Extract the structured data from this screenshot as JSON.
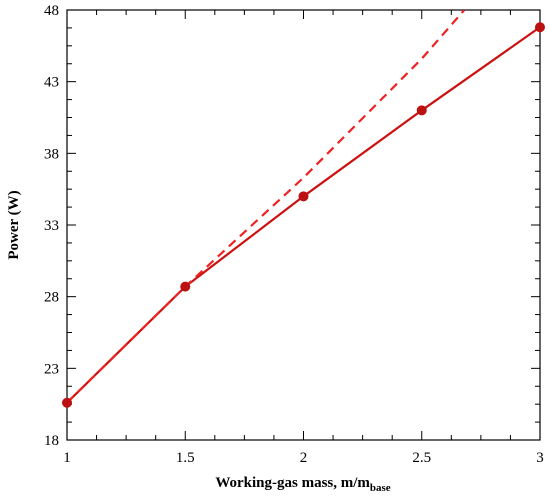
{
  "chart_data": {
    "type": "line",
    "title": "",
    "xlabel": "Working-gas mass, m/m",
    "xlabel_sub": "base",
    "ylabel": "Power (W)",
    "xlim": [
      1,
      3
    ],
    "ylim": [
      18,
      48
    ],
    "xticks": [
      1,
      1.5,
      2,
      2.5,
      3
    ],
    "xtick_labels": [
      "1",
      "1.5",
      "2",
      "2.5",
      "3"
    ],
    "yticks": [
      18,
      23,
      28,
      33,
      38,
      43,
      48
    ],
    "ytick_labels": [
      "18",
      "23",
      "28",
      "33",
      "38",
      "43",
      "48"
    ],
    "grid": false,
    "legend": "none",
    "series": [
      {
        "style": "solid-with-markers",
        "color": "#cc1111",
        "marker_color": "#bb1111",
        "x": [
          1,
          1.5,
          2,
          2.5,
          3
        ],
        "y": [
          20.6,
          28.7,
          35.0,
          41.0,
          46.8
        ]
      },
      {
        "style": "dashed",
        "color": "#ee2222",
        "x": [
          1,
          1.5,
          2,
          2.5,
          2.68
        ],
        "y": [
          20.6,
          28.7,
          36.3,
          44.6,
          48.0
        ]
      }
    ]
  }
}
